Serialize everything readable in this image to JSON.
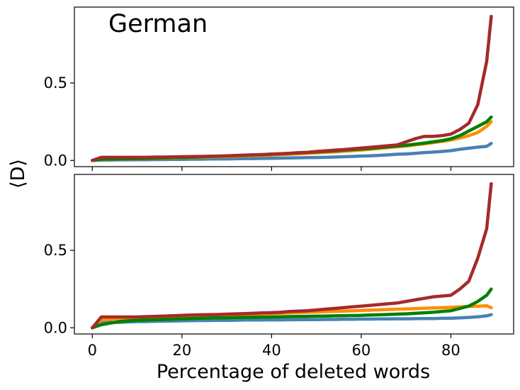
{
  "chart_data": [
    {
      "type": "line",
      "title": "German",
      "xlabel": "Percentage of deleted words",
      "ylabel": "⟨D⟩",
      "xlim": [
        -4,
        94
      ],
      "ylim": [
        -0.04,
        0.99
      ],
      "yticks": [
        0.0,
        0.5
      ],
      "ytick_labels": [
        "0.0",
        "0.5"
      ],
      "xticks": [
        0,
        20,
        40,
        60,
        80
      ],
      "xtick_labels": [
        "",
        "",
        "",
        "",
        ""
      ],
      "grid": false,
      "colors": [
        "#4682b4",
        "#ff8c00",
        "#008000",
        "#a52a2a"
      ],
      "x": [
        0,
        2,
        4,
        6,
        8,
        10,
        12,
        14,
        16,
        18,
        20,
        22,
        24,
        26,
        28,
        30,
        32,
        34,
        36,
        38,
        40,
        42,
        44,
        46,
        48,
        50,
        52,
        54,
        56,
        58,
        60,
        62,
        64,
        66,
        68,
        70,
        72,
        74,
        76,
        78,
        80,
        82,
        84,
        86,
        88,
        89
      ],
      "series": [
        {
          "color": "#4682b4",
          "values": [
            0.0,
            0.003,
            0.003,
            0.004,
            0.004,
            0.005,
            0.005,
            0.006,
            0.006,
            0.007,
            0.007,
            0.008,
            0.008,
            0.009,
            0.01,
            0.01,
            0.011,
            0.012,
            0.012,
            0.013,
            0.014,
            0.015,
            0.016,
            0.017,
            0.018,
            0.019,
            0.02,
            0.022,
            0.024,
            0.026,
            0.028,
            0.03,
            0.033,
            0.036,
            0.04,
            0.042,
            0.046,
            0.05,
            0.054,
            0.058,
            0.063,
            0.072,
            0.079,
            0.086,
            0.091,
            0.11
          ]
        },
        {
          "color": "#ff8c00",
          "values": [
            0.0,
            0.007,
            0.008,
            0.009,
            0.01,
            0.011,
            0.012,
            0.013,
            0.014,
            0.016,
            0.017,
            0.019,
            0.021,
            0.022,
            0.024,
            0.025,
            0.027,
            0.029,
            0.031,
            0.033,
            0.035,
            0.038,
            0.04,
            0.043,
            0.046,
            0.049,
            0.052,
            0.055,
            0.059,
            0.063,
            0.067,
            0.072,
            0.077,
            0.082,
            0.088,
            0.093,
            0.1,
            0.107,
            0.115,
            0.123,
            0.132,
            0.145,
            0.16,
            0.18,
            0.22,
            0.25
          ]
        },
        {
          "color": "#008000",
          "values": [
            0.0,
            0.008,
            0.009,
            0.01,
            0.011,
            0.012,
            0.013,
            0.015,
            0.016,
            0.018,
            0.019,
            0.021,
            0.023,
            0.025,
            0.027,
            0.029,
            0.031,
            0.033,
            0.036,
            0.038,
            0.041,
            0.043,
            0.046,
            0.049,
            0.052,
            0.055,
            0.059,
            0.062,
            0.066,
            0.07,
            0.074,
            0.078,
            0.083,
            0.088,
            0.093,
            0.098,
            0.105,
            0.112,
            0.12,
            0.128,
            0.14,
            0.16,
            0.19,
            0.22,
            0.25,
            0.28
          ]
        },
        {
          "color": "#a52a2a",
          "values": [
            0.0,
            0.02,
            0.02,
            0.02,
            0.02,
            0.02,
            0.02,
            0.022,
            0.022,
            0.023,
            0.024,
            0.025,
            0.026,
            0.027,
            0.028,
            0.03,
            0.032,
            0.034,
            0.036,
            0.038,
            0.04,
            0.043,
            0.046,
            0.05,
            0.052,
            0.058,
            0.062,
            0.066,
            0.07,
            0.075,
            0.08,
            0.085,
            0.09,
            0.095,
            0.1,
            0.12,
            0.14,
            0.155,
            0.155,
            0.16,
            0.17,
            0.2,
            0.24,
            0.36,
            0.64,
            0.93
          ]
        }
      ]
    },
    {
      "type": "line",
      "title": "",
      "xlabel": "Percentage of deleted words",
      "ylabel": "⟨D⟩",
      "xlim": [
        -4,
        94
      ],
      "ylim": [
        -0.04,
        0.99
      ],
      "yticks": [
        0.0,
        0.5
      ],
      "ytick_labels": [
        "0.0",
        "0.5"
      ],
      "xticks": [
        0,
        20,
        40,
        60,
        80
      ],
      "xtick_labels": [
        "0",
        "20",
        "40",
        "60",
        "80"
      ],
      "grid": false,
      "colors": [
        "#4682b4",
        "#ff8c00",
        "#008000",
        "#a52a2a"
      ],
      "x": [
        0,
        2,
        4,
        6,
        8,
        10,
        12,
        14,
        16,
        18,
        20,
        22,
        24,
        26,
        28,
        30,
        32,
        34,
        36,
        38,
        40,
        42,
        44,
        46,
        48,
        50,
        52,
        54,
        56,
        58,
        60,
        62,
        64,
        66,
        68,
        70,
        72,
        74,
        76,
        78,
        80,
        82,
        84,
        86,
        88,
        89
      ],
      "series": [
        {
          "color": "#4682b4",
          "values": [
            0.0,
            0.03,
            0.035,
            0.035,
            0.038,
            0.04,
            0.04,
            0.042,
            0.043,
            0.044,
            0.045,
            0.046,
            0.047,
            0.047,
            0.048,
            0.048,
            0.049,
            0.05,
            0.05,
            0.05,
            0.051,
            0.051,
            0.052,
            0.052,
            0.053,
            0.053,
            0.054,
            0.054,
            0.055,
            0.055,
            0.056,
            0.056,
            0.057,
            0.057,
            0.058,
            0.058,
            0.059,
            0.06,
            0.06,
            0.061,
            0.062,
            0.064,
            0.067,
            0.071,
            0.077,
            0.085
          ]
        },
        {
          "color": "#ff8c00",
          "values": [
            0.0,
            0.05,
            0.055,
            0.06,
            0.063,
            0.066,
            0.068,
            0.07,
            0.072,
            0.074,
            0.075,
            0.077,
            0.078,
            0.08,
            0.082,
            0.083,
            0.085,
            0.087,
            0.088,
            0.09,
            0.092,
            0.094,
            0.096,
            0.098,
            0.1,
            0.102,
            0.104,
            0.106,
            0.108,
            0.11,
            0.112,
            0.114,
            0.116,
            0.118,
            0.12,
            0.122,
            0.124,
            0.126,
            0.128,
            0.13,
            0.132,
            0.135,
            0.138,
            0.14,
            0.142,
            0.13
          ]
        },
        {
          "color": "#008000",
          "values": [
            0.0,
            0.02,
            0.03,
            0.04,
            0.045,
            0.048,
            0.05,
            0.052,
            0.054,
            0.056,
            0.058,
            0.06,
            0.062,
            0.063,
            0.064,
            0.065,
            0.066,
            0.067,
            0.068,
            0.069,
            0.07,
            0.071,
            0.072,
            0.073,
            0.074,
            0.075,
            0.076,
            0.077,
            0.078,
            0.079,
            0.08,
            0.082,
            0.084,
            0.086,
            0.088,
            0.09,
            0.093,
            0.097,
            0.1,
            0.105,
            0.11,
            0.125,
            0.14,
            0.17,
            0.21,
            0.25
          ]
        },
        {
          "color": "#a52a2a",
          "values": [
            0.0,
            0.07,
            0.07,
            0.07,
            0.07,
            0.07,
            0.072,
            0.074,
            0.076,
            0.078,
            0.08,
            0.082,
            0.084,
            0.085,
            0.086,
            0.088,
            0.09,
            0.092,
            0.094,
            0.096,
            0.098,
            0.1,
            0.105,
            0.108,
            0.11,
            0.115,
            0.12,
            0.125,
            0.13,
            0.135,
            0.14,
            0.145,
            0.15,
            0.155,
            0.16,
            0.17,
            0.18,
            0.19,
            0.2,
            0.205,
            0.21,
            0.25,
            0.3,
            0.45,
            0.64,
            0.93
          ]
        }
      ]
    }
  ]
}
